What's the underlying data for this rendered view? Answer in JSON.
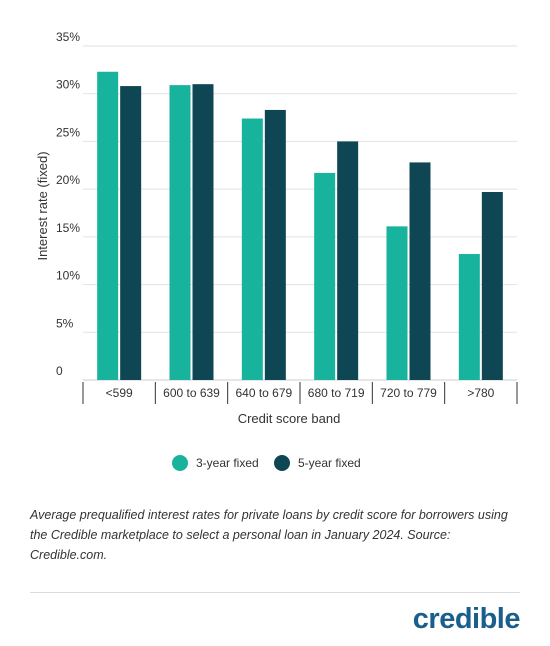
{
  "chart_data": {
    "type": "bar",
    "title": "",
    "xlabel": "Credit score band",
    "ylabel": "Interest rate (fixed)",
    "categories": [
      "<599",
      "600 to 639",
      "640 to 679",
      "680 to 719",
      "720 to 779",
      ">780"
    ],
    "series": [
      {
        "name": "3-year fixed",
        "color": "#17b39d",
        "values": [
          32.3,
          30.9,
          27.4,
          21.7,
          16.1,
          13.2
        ]
      },
      {
        "name": "5-year fixed",
        "color": "#0f4653",
        "values": [
          30.8,
          31.0,
          28.3,
          25.0,
          22.8,
          19.7
        ]
      }
    ],
    "ylim": [
      0,
      35
    ],
    "yticks": [
      0,
      5,
      10,
      15,
      20,
      25,
      30,
      35
    ],
    "ytick_labels": [
      "0",
      "5%",
      "10%",
      "15%",
      "20%",
      "25%",
      "30%",
      "35%"
    ],
    "grid": true,
    "legend": "bottom-center"
  },
  "caption": "Average prequalified interest rates for private loans by credit score for borrowers using the Credible marketplace to select a personal loan in January 2024. Source: Credible.com.",
  "brand": {
    "name": "credible",
    "color": "#1a5f8c"
  }
}
